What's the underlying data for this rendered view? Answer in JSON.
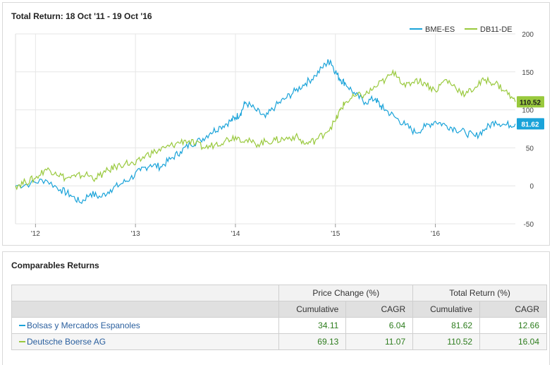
{
  "chart_panel": {
    "title": "Total Return: 18 Oct '11 - 19 Oct '16"
  },
  "chart_data": {
    "type": "line",
    "title": "Total Return: 18 Oct '11 - 19 Oct '16",
    "x_tick_labels": [
      "'12",
      "'13",
      "'14",
      "'15",
      "'16"
    ],
    "x_ticks_years": [
      2012,
      2013,
      2014,
      2015,
      2016
    ],
    "x_range": [
      2011.8,
      2016.8
    ],
    "y_ticks": [
      -50,
      0,
      50,
      100,
      150,
      200
    ],
    "ylim": [
      -50,
      200
    ],
    "grid": true,
    "legend_position": "top-right",
    "series": [
      {
        "name": "BME-ES",
        "color": "#1aa3d9",
        "end_label": "81.62",
        "x": [
          2011.8,
          2011.95,
          2012.1,
          2012.25,
          2012.35,
          2012.45,
          2012.55,
          2012.65,
          2012.75,
          2012.85,
          2012.95,
          2013.05,
          2013.15,
          2013.25,
          2013.35,
          2013.45,
          2013.55,
          2013.65,
          2013.75,
          2013.85,
          2013.95,
          2014.0,
          2014.05,
          2014.1,
          2014.2,
          2014.3,
          2014.4,
          2014.5,
          2014.6,
          2014.7,
          2014.8,
          2014.9,
          2014.95,
          2015.0,
          2015.05,
          2015.1,
          2015.2,
          2015.3,
          2015.4,
          2015.45,
          2015.5,
          2015.6,
          2015.7,
          2015.8,
          2015.9,
          2016.0,
          2016.1,
          2016.2,
          2016.3,
          2016.4,
          2016.5,
          2016.6,
          2016.7,
          2016.8
        ],
        "values": [
          0,
          3,
          8,
          -5,
          -12,
          -22,
          -10,
          -15,
          -5,
          2,
          10,
          20,
          28,
          25,
          35,
          45,
          55,
          60,
          70,
          78,
          85,
          90,
          95,
          110,
          100,
          90,
          105,
          115,
          125,
          135,
          145,
          160,
          165,
          150,
          140,
          135,
          120,
          110,
          115,
          105,
          100,
          90,
          80,
          70,
          78,
          85,
          80,
          75,
          70,
          65,
          75,
          85,
          80,
          81.62
        ]
      },
      {
        "name": "DB11-DE",
        "color": "#99c93d",
        "end_label": "110.52",
        "x": [
          2011.8,
          2011.9,
          2012.0,
          2012.1,
          2012.2,
          2012.3,
          2012.4,
          2012.5,
          2012.6,
          2012.7,
          2012.8,
          2012.9,
          2013.0,
          2013.1,
          2013.2,
          2013.3,
          2013.4,
          2013.5,
          2013.6,
          2013.7,
          2013.8,
          2013.9,
          2014.0,
          2014.1,
          2014.2,
          2014.3,
          2014.4,
          2014.5,
          2014.6,
          2014.7,
          2014.8,
          2014.9,
          2015.0,
          2015.05,
          2015.1,
          2015.2,
          2015.3,
          2015.4,
          2015.5,
          2015.6,
          2015.7,
          2015.8,
          2015.9,
          2016.0,
          2016.1,
          2016.2,
          2016.3,
          2016.4,
          2016.5,
          2016.6,
          2016.7,
          2016.8
        ],
        "values": [
          0,
          5,
          10,
          22,
          18,
          10,
          12,
          15,
          10,
          18,
          25,
          30,
          28,
          40,
          45,
          50,
          55,
          60,
          55,
          50,
          55,
          60,
          65,
          60,
          55,
          58,
          60,
          62,
          65,
          55,
          60,
          70,
          85,
          100,
          110,
          118,
          120,
          130,
          140,
          150,
          130,
          140,
          135,
          125,
          140,
          130,
          120,
          130,
          140,
          135,
          125,
          110.52
        ]
      }
    ]
  },
  "table_panel": {
    "title": "Comparables Returns",
    "group_headers": [
      "Price Change (%)",
      "Total Return (%)"
    ],
    "sub_headers": [
      "Cumulative",
      "CAGR",
      "Cumulative",
      "CAGR"
    ],
    "rows": [
      {
        "name": "Bolsas y Mercados Espanoles",
        "color": "#1aa3d9",
        "values": [
          "34.11",
          "6.04",
          "81.62",
          "12.66"
        ]
      },
      {
        "name": "Deutsche Boerse AG",
        "color": "#99c93d",
        "values": [
          "69.13",
          "11.07",
          "110.52",
          "16.04"
        ]
      }
    ]
  }
}
